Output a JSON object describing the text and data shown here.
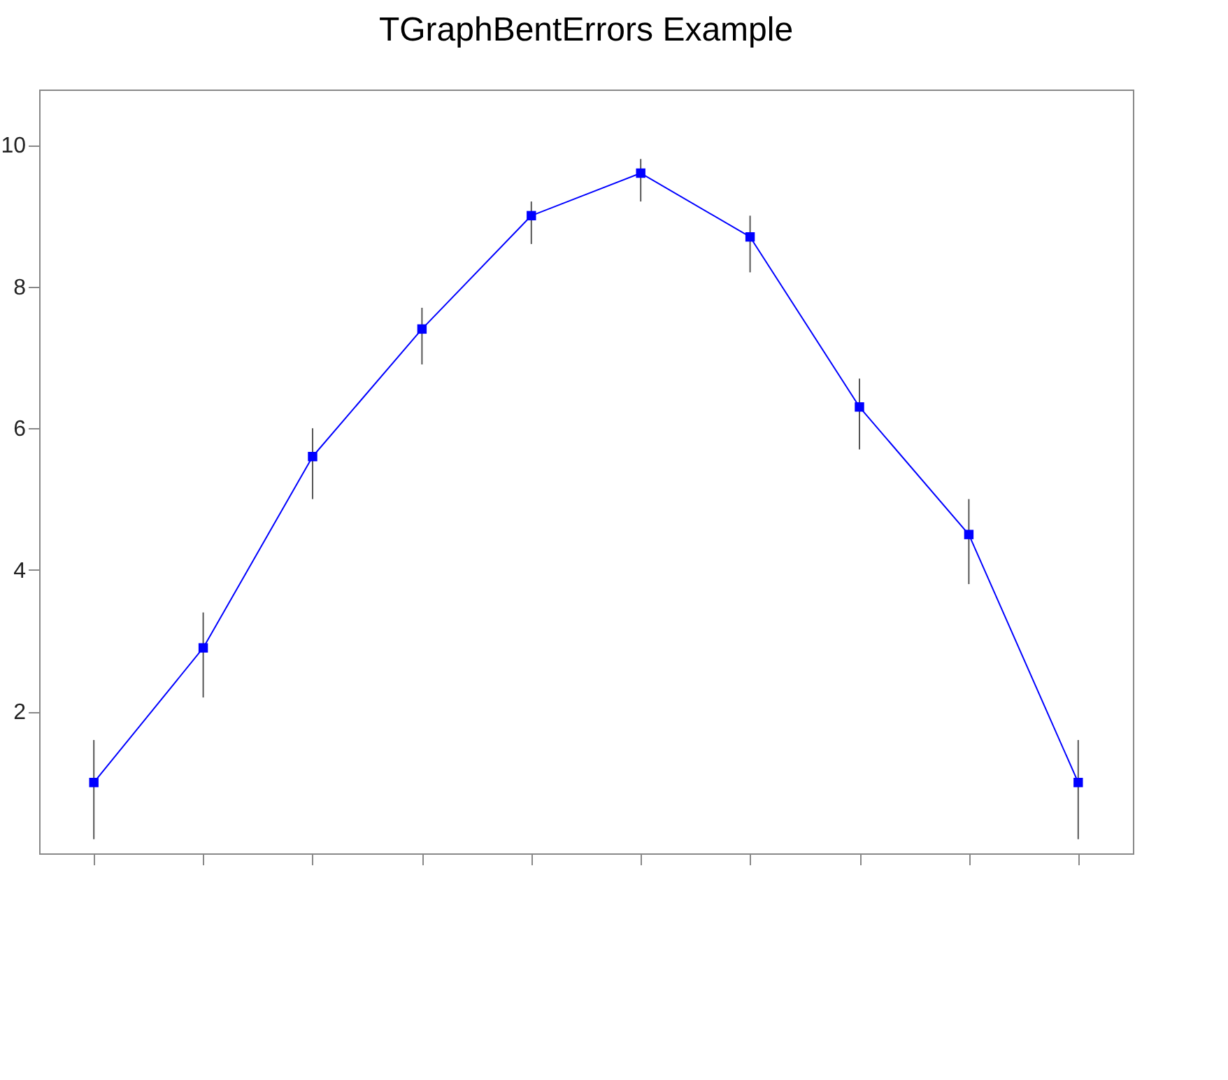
{
  "chart_data": {
    "type": "line",
    "title": "TGraphBentErrors Example",
    "categories": [
      null,
      null,
      null,
      null,
      null,
      null,
      null,
      null,
      null,
      null
    ],
    "series": [
      {
        "color": "#0000ff",
        "values": [
          1,
          2.9,
          5.6,
          7.4,
          9,
          9.6,
          8.7,
          6.3,
          4.5,
          1
        ],
        "errors": [
          [
            0.2,
            1.6
          ],
          [
            2.2,
            3.4
          ],
          [
            5.0,
            6.0
          ],
          [
            6.9,
            7.7
          ],
          [
            8.6,
            9.2
          ],
          [
            9.2,
            9.8
          ],
          [
            8.2,
            9.0
          ],
          [
            5.7,
            6.7
          ],
          [
            3.8,
            5.0
          ],
          [
            0.2,
            1.6
          ]
        ]
      }
    ],
    "ylim": [
      0,
      10.78
    ],
    "yticks": [
      2,
      4,
      6,
      8,
      10
    ],
    "marker": "square",
    "grid": false,
    "legend": false
  }
}
